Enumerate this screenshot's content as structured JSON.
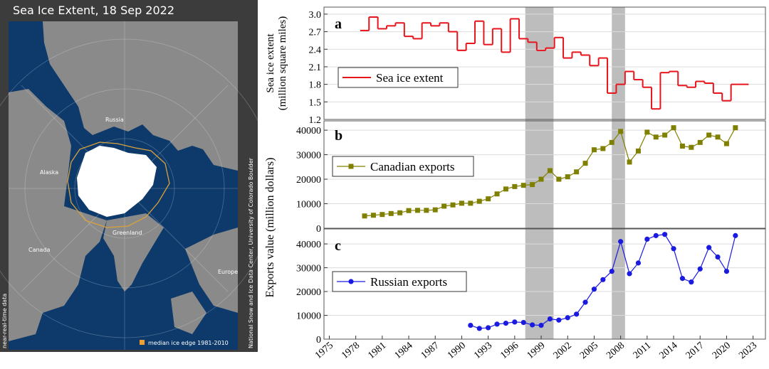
{
  "map": {
    "title": "Sea Ice Extent, 18 Sep 2022",
    "labels": [
      "Russia",
      "Alaska",
      "Canada",
      "Greenland",
      "Europe"
    ],
    "legend": "median ice edge 1981-2010",
    "side_left": "near-real-time data",
    "side_right": "National Snow and Ice Data Center, University of Colorado Boulder"
  },
  "shared": {
    "ylabel": "Exports value (million dollars)",
    "highlight_ranges": [
      [
        1997.2,
        2000.4
      ],
      [
        2007,
        2008.5
      ]
    ]
  },
  "chart_data": [
    {
      "type": "line",
      "step": true,
      "label": "a",
      "ylabel": [
        "Sea ice extent",
        "(million square miles)"
      ],
      "x": [
        1979,
        1980,
        1981,
        1982,
        1983,
        1984,
        1985,
        1986,
        1987,
        1988,
        1989,
        1990,
        1991,
        1992,
        1993,
        1994,
        1995,
        1996,
        1997,
        1998,
        1999,
        2000,
        2001,
        2002,
        2003,
        2004,
        2005,
        2006,
        2007,
        2008,
        2009,
        2010,
        2011,
        2012,
        2013,
        2014,
        2015,
        2016,
        2017,
        2018,
        2019,
        2020,
        2021,
        2022
      ],
      "series": [
        {
          "name": "Sea ice extent",
          "color": "#e8141c",
          "values": [
            2.72,
            2.95,
            2.75,
            2.8,
            2.85,
            2.62,
            2.58,
            2.85,
            2.8,
            2.85,
            2.7,
            2.38,
            2.5,
            2.88,
            2.48,
            2.75,
            2.35,
            2.92,
            2.58,
            2.52,
            2.38,
            2.42,
            2.6,
            2.25,
            2.35,
            2.3,
            2.12,
            2.25,
            1.65,
            1.8,
            2.02,
            1.88,
            1.75,
            1.38,
            2.0,
            2.02,
            1.78,
            1.75,
            1.85,
            1.82,
            1.65,
            1.52,
            1.8,
            1.8
          ]
        }
      ],
      "xlim": [
        1974.4,
        2024.4
      ],
      "ylim": [
        1.2,
        3.12
      ],
      "yticks": [
        1.2,
        1.5,
        1.8,
        2.1,
        2.4,
        2.7,
        {
          "value": 3,
          "label": "3.0"
        }
      ],
      "grid": true
    },
    {
      "type": "line",
      "marker": "square",
      "label": "b",
      "x": [
        1979,
        1980,
        1981,
        1982,
        1983,
        1984,
        1985,
        1986,
        1987,
        1988,
        1989,
        1990,
        1991,
        1992,
        1993,
        1994,
        1995,
        1996,
        1997,
        1998,
        1999,
        2000,
        2001,
        2002,
        2003,
        2004,
        2005,
        2006,
        2007,
        2008,
        2009,
        2010,
        2011,
        2012,
        2013,
        2014,
        2015,
        2016,
        2017,
        2018,
        2019,
        2020,
        2021
      ],
      "series": [
        {
          "name": "Canadian exports",
          "color": "#808000",
          "values": [
            5000,
            5300,
            5600,
            6000,
            6300,
            7200,
            7300,
            7300,
            7500,
            9000,
            9500,
            10200,
            10200,
            11000,
            12000,
            14000,
            16000,
            17000,
            17500,
            17800,
            20000,
            23500,
            20000,
            21000,
            23000,
            26500,
            32000,
            32500,
            35000,
            39500,
            27000,
            31500,
            39200,
            37200,
            38000,
            41000,
            33500,
            33000,
            35000,
            38000,
            37200,
            34500,
            41000
          ]
        }
      ],
      "xlim": [
        1974.4,
        2024.4
      ],
      "ylim": [
        0,
        43800
      ],
      "yticks": [
        0,
        10000,
        20000,
        30000,
        40000
      ],
      "grid": true
    },
    {
      "type": "line",
      "marker": "circle",
      "label": "c",
      "x": [
        1991,
        1992,
        1993,
        1994,
        1995,
        1996,
        1997,
        1998,
        1999,
        2000,
        2001,
        2002,
        2003,
        2004,
        2005,
        2006,
        2007,
        2008,
        2009,
        2010,
        2011,
        2012,
        2013,
        2014,
        2015,
        2016,
        2017,
        2018,
        2019,
        2020,
        2021
      ],
      "series": [
        {
          "name": "Russian exports",
          "color": "#1a1ae0",
          "values": [
            5800,
            4500,
            4800,
            6300,
            6700,
            7200,
            7000,
            6000,
            5800,
            8500,
            8000,
            9000,
            10500,
            15500,
            21000,
            25000,
            28500,
            41000,
            27500,
            32000,
            42000,
            43500,
            44000,
            38000,
            25500,
            24000,
            29500,
            38500,
            34500,
            28500,
            43500
          ]
        }
      ],
      "xlim": [
        1974.4,
        2024.4
      ],
      "ylim": [
        0,
        46300
      ],
      "yticks": [
        0,
        10000,
        20000,
        30000,
        40000
      ],
      "xticks": [
        1975,
        1978,
        1981,
        1984,
        1987,
        1990,
        1993,
        1996,
        1999,
        2002,
        2005,
        2008,
        2011,
        2014,
        2017,
        2020,
        2023
      ],
      "grid": true
    }
  ]
}
